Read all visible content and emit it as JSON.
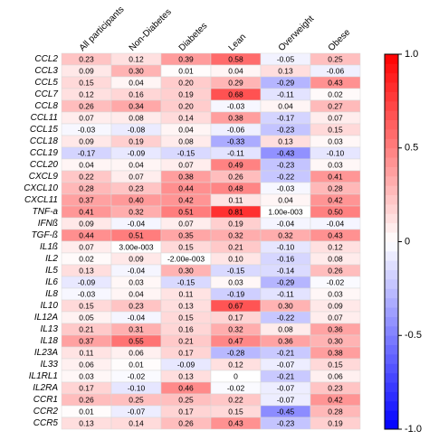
{
  "chart_data": {
    "type": "heatmap",
    "columns": [
      "All participants",
      "Non-Diabetes",
      "Diabetes",
      "Lean",
      "Overweight",
      "Obese"
    ],
    "rows": [
      "CCL2",
      "CCL3",
      "CCL5",
      "CCL7",
      "CCL8",
      "CCL11",
      "CCL15",
      "CCL18",
      "CCL19",
      "CCL20",
      "CXCL9",
      "CXCL10",
      "CXCL11",
      "TNF-a",
      "IFNß",
      "TGF-ß",
      "IL1ß",
      "IL2",
      "IL5",
      "IL6",
      "IL8",
      "IL10",
      "IL12A",
      "IL13",
      "IL18",
      "IL23A",
      "IL33",
      "IL1RL1",
      "IL2RA",
      "CCR1",
      "CCR2",
      "CCR5"
    ],
    "values": [
      [
        0.23,
        0.12,
        0.39,
        0.58,
        -0.05,
        0.25
      ],
      [
        0.09,
        0.3,
        0.01,
        0.04,
        0.13,
        -0.06
      ],
      [
        0.15,
        0.04,
        0.2,
        0.29,
        -0.29,
        0.43
      ],
      [
        0.12,
        0.16,
        0.19,
        0.68,
        -0.11,
        0.02
      ],
      [
        0.26,
        0.34,
        0.2,
        -0.03,
        0.04,
        0.27
      ],
      [
        0.07,
        0.08,
        0.14,
        0.38,
        -0.17,
        0.07
      ],
      [
        -0.03,
        -0.08,
        0.04,
        -0.06,
        -0.23,
        0.15
      ],
      [
        0.09,
        0.19,
        0.08,
        -0.33,
        0.13,
        0.03
      ],
      [
        -0.17,
        -0.09,
        -0.15,
        -0.11,
        -0.43,
        -0.1
      ],
      [
        0.04,
        0.04,
        0.07,
        0.49,
        -0.23,
        0.03
      ],
      [
        0.22,
        0.07,
        0.38,
        0.26,
        -0.22,
        0.41
      ],
      [
        0.28,
        0.23,
        0.44,
        0.48,
        -0.03,
        0.28
      ],
      [
        0.37,
        0.4,
        0.42,
        0.11,
        0.04,
        0.42
      ],
      [
        0.41,
        0.32,
        0.51,
        0.81,
        0.001,
        0.5
      ],
      [
        0.09,
        -0.04,
        0.07,
        0.19,
        -0.04,
        -0.04
      ],
      [
        0.44,
        0.51,
        0.35,
        0.32,
        0.32,
        0.43
      ],
      [
        0.07,
        0.003,
        0.15,
        0.21,
        -0.1,
        0.12
      ],
      [
        0.02,
        0.09,
        -0.002,
        0.1,
        -0.16,
        0.08
      ],
      [
        0.13,
        -0.04,
        0.3,
        -0.15,
        -0.14,
        0.26
      ],
      [
        -0.09,
        0.03,
        -0.15,
        0.03,
        -0.29,
        -0.02
      ],
      [
        -0.03,
        0.04,
        0.11,
        -0.19,
        -0.11,
        0.03
      ],
      [
        0.15,
        0.23,
        0.13,
        0.67,
        0.3,
        0.09
      ],
      [
        0.05,
        -0.04,
        0.15,
        0.17,
        -0.22,
        0.07
      ],
      [
        0.21,
        0.31,
        0.16,
        0.32,
        0.08,
        0.36
      ],
      [
        0.37,
        0.55,
        0.21,
        0.47,
        0.36,
        0.3
      ],
      [
        0.11,
        0.06,
        0.17,
        -0.28,
        -0.21,
        0.38
      ],
      [
        0.06,
        0.01,
        -0.09,
        0.12,
        -0.07,
        0.15
      ],
      [
        0.03,
        -0.02,
        0.13,
        0,
        -0.21,
        0.06
      ],
      [
        0.17,
        -0.1,
        0.46,
        -0.02,
        -0.07,
        0.23
      ],
      [
        0.26,
        0.25,
        0.25,
        0.22,
        -0.07,
        0.42
      ],
      [
        0.01,
        -0.07,
        0.17,
        0.15,
        -0.45,
        0.28
      ],
      [
        0.13,
        0.14,
        0.26,
        0.43,
        -0.23,
        0.19
      ]
    ],
    "value_labels": [
      [
        "0.23",
        "0.12",
        "0.39",
        "0.58",
        "-0.05",
        "0.25"
      ],
      [
        "0.09",
        "0.30",
        "0.01",
        "0.04",
        "0.13",
        "-0.06"
      ],
      [
        "0.15",
        "0.04",
        "0.20",
        "0.29",
        "-0.29",
        "0.43"
      ],
      [
        "0.12",
        "0.16",
        "0.19",
        "0.68",
        "-0.11",
        "0.02"
      ],
      [
        "0.26",
        "0.34",
        "0.20",
        "-0.03",
        "0.04",
        "0.27"
      ],
      [
        "0.07",
        "0.08",
        "0.14",
        "0.38",
        "-0.17",
        "0.07"
      ],
      [
        "-0.03",
        "-0.08",
        "0.04",
        "-0.06",
        "-0.23",
        "0.15"
      ],
      [
        "0.09",
        "0.19",
        "0.08",
        "-0.33",
        "0.13",
        "0.03"
      ],
      [
        "-0.17",
        "-0.09",
        "-0.15",
        "-0.11",
        "-0.43",
        "-0.10"
      ],
      [
        "0.04",
        "0.04",
        "0.07",
        "0.49",
        "-0.23",
        "0.03"
      ],
      [
        "0.22",
        "0.07",
        "0.38",
        "0.26",
        "-0.22",
        "0.41"
      ],
      [
        "0.28",
        "0.23",
        "0.44",
        "0.48",
        "-0.03",
        "0.28"
      ],
      [
        "0.37",
        "0.40",
        "0.42",
        "0.11",
        "0.04",
        "0.42"
      ],
      [
        "0.41",
        "0.32",
        "0.51",
        "0.81",
        "1.00e-003",
        "0.50"
      ],
      [
        "0.09",
        "-0.04",
        "0.07",
        "0.19",
        "-0.04",
        "-0.04"
      ],
      [
        "0.44",
        "0.51",
        "0.35",
        "0.32",
        "0.32",
        "0.43"
      ],
      [
        "0.07",
        "3.00e-003",
        "0.15",
        "0.21",
        "-0.10",
        "0.12"
      ],
      [
        "0.02",
        "0.09",
        "-2.00e-003",
        "0.10",
        "-0.16",
        "0.08"
      ],
      [
        "0.13",
        "-0.04",
        "0.30",
        "-0.15",
        "-0.14",
        "0.26"
      ],
      [
        "-0.09",
        "0.03",
        "-0.15",
        "0.03",
        "-0.29",
        "-0.02"
      ],
      [
        "-0.03",
        "0.04",
        "0.11",
        "-0.19",
        "-0.11",
        "0.03"
      ],
      [
        "0.15",
        "0.23",
        "0.13",
        "0.67",
        "0.30",
        "0.09"
      ],
      [
        "0.05",
        "-0.04",
        "0.15",
        "0.17",
        "-0.22",
        "0.07"
      ],
      [
        "0.21",
        "0.31",
        "0.16",
        "0.32",
        "0.08",
        "0.36"
      ],
      [
        "0.37",
        "0.55",
        "0.21",
        "0.47",
        "0.36",
        "0.30"
      ],
      [
        "0.11",
        "0.06",
        "0.17",
        "-0.28",
        "-0.21",
        "0.38"
      ],
      [
        "0.06",
        "0.01",
        "-0.09",
        "0.12",
        "-0.07",
        "0.15"
      ],
      [
        "0.03",
        "-0.02",
        "0.13",
        "0",
        "-0.21",
        "0.06"
      ],
      [
        "0.17",
        "-0.10",
        "0.46",
        "-0.02",
        "-0.07",
        "0.23"
      ],
      [
        "0.26",
        "0.25",
        "0.25",
        "0.22",
        "-0.07",
        "0.42"
      ],
      [
        "0.01",
        "-0.07",
        "0.17",
        "0.15",
        "-0.45",
        "0.28"
      ],
      [
        "0.13",
        "0.14",
        "0.26",
        "0.43",
        "-0.23",
        "0.19"
      ]
    ],
    "clim": [
      -1,
      1
    ],
    "cticks": [
      {
        "value": -1,
        "label": "-1.0"
      },
      -0.5,
      0,
      0.5,
      {
        "value": 1,
        "label": "1.0"
      }
    ],
    "colors": [
      "#0000ff",
      "#ffffff",
      "#ff0000"
    ]
  }
}
